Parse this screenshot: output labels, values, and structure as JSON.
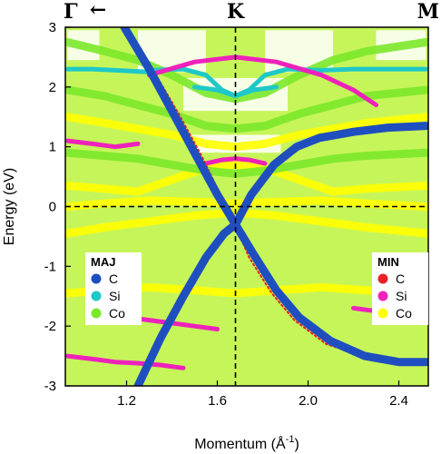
{
  "chart_data": {
    "type": "scatter",
    "title": "",
    "xlabel": "Momentum (Å",
    "xlabel_sup": "-1",
    "xlabel_close": ")",
    "ylabel": "Energy (eV)",
    "xlim": [
      0.93,
      2.53
    ],
    "ylim": [
      -3,
      3
    ],
    "xticks": [
      1.2,
      1.6,
      2.0,
      2.4
    ],
    "xtick_labels": [
      "1.2",
      "1.6",
      "2.0",
      "2.4"
    ],
    "yticks": [
      -3,
      -2,
      -1,
      0,
      1,
      2,
      3
    ],
    "ytick_labels": [
      "-3",
      "-2",
      "-1",
      "0",
      "1",
      "2",
      "3"
    ],
    "grid": false,
    "fermi_level": 0,
    "high_symmetry_points": [
      {
        "label": "Γ",
        "x": 0.93
      },
      {
        "label": "K",
        "x": 1.68
      },
      {
        "label": "M",
        "x": 2.53
      }
    ],
    "gamma_arrow": "←",
    "legends": [
      {
        "title": "MAJ",
        "position": "bottom-left",
        "entries": [
          {
            "name": "C",
            "color": "#1f4fbf"
          },
          {
            "name": "Si",
            "color": "#1fc8c8"
          },
          {
            "name": "Co",
            "color": "#7be82a"
          }
        ]
      },
      {
        "title": "MIN",
        "position": "bottom-right",
        "entries": [
          {
            "name": "C",
            "color": "#e8202a"
          },
          {
            "name": "Si",
            "color": "#ee22bb"
          },
          {
            "name": "Co",
            "color": "#ffff00"
          }
        ]
      }
    ],
    "background_fill": "#c6f55a",
    "series": [
      {
        "name": "C",
        "spin": "MAJ",
        "color": "#1f4fbf",
        "style": "thick",
        "lines": [
          {
            "x": [
              1.19,
              1.3,
              1.4,
              1.5,
              1.6,
              1.68,
              1.76,
              1.86,
              1.96,
              2.1,
              2.25,
              2.4,
              2.52
            ],
            "y": [
              3.0,
              2.3,
              1.6,
              0.9,
              0.2,
              -0.3,
              -0.8,
              -1.4,
              -1.85,
              -2.25,
              -2.5,
              -2.6,
              -2.6
            ]
          },
          {
            "x": [
              1.25,
              1.35,
              1.45,
              1.55,
              1.63,
              1.68,
              1.75,
              1.85,
              1.95,
              2.05,
              2.2,
              2.35,
              2.52
            ],
            "y": [
              -3.0,
              -2.2,
              -1.5,
              -0.85,
              -0.45,
              -0.3,
              0.2,
              0.7,
              1.0,
              1.15,
              1.25,
              1.32,
              1.35
            ]
          }
        ]
      },
      {
        "name": "C",
        "spin": "MIN",
        "color": "#e8202a",
        "style": "thin",
        "lines": [
          {
            "x": [
              1.22,
              1.33,
              1.43,
              1.53,
              1.62,
              1.68,
              1.74,
              1.84,
              1.94,
              2.08,
              2.24,
              2.4,
              2.52
            ],
            "y": [
              2.85,
              2.2,
              1.55,
              0.85,
              0.15,
              -0.32,
              -0.85,
              -1.45,
              -1.9,
              -2.3,
              -2.5,
              -2.62,
              -2.62
            ]
          }
        ]
      },
      {
        "name": "Si",
        "spin": "MAJ",
        "color": "#1fc8c8",
        "style": "medium",
        "lines": [
          {
            "x": [
              1.3,
              1.45,
              1.55,
              1.62,
              1.68,
              1.74,
              1.81,
              1.91,
              2.06
            ],
            "y": [
              2.28,
              2.3,
              2.2,
              1.95,
              1.85,
              1.95,
              2.2,
              2.3,
              2.28
            ]
          },
          {
            "x": [
              0.94,
              1.05,
              1.15,
              1.3
            ],
            "y": [
              2.3,
              2.3,
              2.28,
              2.25
            ]
          },
          {
            "x": [
              2.06,
              2.2,
              2.35,
              2.52
            ],
            "y": [
              2.28,
              2.3,
              2.3,
              2.3
            ]
          },
          {
            "x": [
              1.5,
              1.6,
              1.68,
              1.76,
              1.86
            ],
            "y": [
              2.0,
              1.95,
              1.85,
              1.95,
              2.0
            ]
          }
        ]
      },
      {
        "name": "Si",
        "spin": "MIN",
        "color": "#ee22bb",
        "style": "medium",
        "lines": [
          {
            "x": [
              1.3,
              1.5,
              1.68,
              1.86,
              2.06,
              2.2,
              2.3
            ],
            "y": [
              2.2,
              2.42,
              2.5,
              2.42,
              2.2,
              1.95,
              1.7
            ]
          },
          {
            "x": [
              0.94,
              1.05,
              1.15,
              1.25
            ],
            "y": [
              1.1,
              1.05,
              1.0,
              1.05
            ]
          },
          {
            "x": [
              1.2,
              1.3,
              1.4,
              1.5,
              1.6
            ],
            "y": [
              -1.85,
              -1.9,
              -1.95,
              -2.0,
              -2.05
            ]
          },
          {
            "x": [
              0.94,
              1.05,
              1.15,
              1.25,
              1.35,
              1.45
            ],
            "y": [
              -2.5,
              -2.55,
              -2.6,
              -2.62,
              -2.65,
              -2.7
            ]
          },
          {
            "x": [
              1.55,
              1.62,
              1.68,
              1.74,
              1.81
            ],
            "y": [
              0.72,
              0.78,
              0.8,
              0.78,
              0.72
            ]
          },
          {
            "x": [
              2.2,
              2.3,
              2.4,
              2.52
            ],
            "y": [
              -1.7,
              -1.75,
              -1.8,
              -1.85
            ]
          }
        ]
      },
      {
        "name": "Co",
        "spin": "MIN",
        "color": "#ffff00",
        "style": "band",
        "lines": [
          {
            "x": [
              0.94,
              1.1,
              1.25,
              1.4,
              1.55,
              1.68,
              1.81,
              1.96,
              2.11,
              2.26,
              2.52
            ],
            "y": [
              0.35,
              0.3,
              0.25,
              0.45,
              0.65,
              0.7,
              0.65,
              0.45,
              0.25,
              0.3,
              0.35
            ]
          },
          {
            "x": [
              0.94,
              1.1,
              1.25,
              1.4,
              1.55,
              1.68,
              1.81,
              1.96,
              2.11,
              2.26,
              2.52
            ],
            "y": [
              1.5,
              1.4,
              1.3,
              1.2,
              1.05,
              1.0,
              1.05,
              1.2,
              1.3,
              1.4,
              1.5
            ]
          },
          {
            "x": [
              0.94,
              1.1,
              1.3,
              1.5,
              1.68,
              1.86,
              2.06,
              2.26,
              2.52
            ],
            "y": [
              -0.45,
              -0.35,
              -0.25,
              -0.15,
              -0.1,
              -0.15,
              -0.25,
              -0.35,
              -0.45
            ]
          },
          {
            "x": [
              0.94,
              1.1,
              1.3,
              1.5,
              1.68,
              1.86,
              2.06,
              2.26,
              2.52
            ],
            "y": [
              -1.45,
              -1.4,
              -1.35,
              -1.4,
              -1.45,
              -1.4,
              -1.35,
              -1.4,
              -1.45
            ]
          },
          {
            "x": [
              0.94,
              1.1,
              1.3,
              1.5,
              1.68,
              1.86,
              2.06,
              2.26,
              2.52
            ],
            "y": [
              0.0,
              0.05,
              0.1,
              0.08,
              0.05,
              0.08,
              0.1,
              0.05,
              0.0
            ]
          }
        ]
      },
      {
        "name": "Co",
        "spin": "MAJ",
        "color": "#7be82a",
        "style": "band",
        "lines": [
          {
            "x": [
              0.94,
              1.1,
              1.25,
              1.4,
              1.55,
              1.68,
              1.81,
              1.96,
              2.11,
              2.26,
              2.52
            ],
            "y": [
              2.75,
              2.6,
              2.45,
              2.2,
              1.9,
              1.8,
              1.9,
              2.2,
              2.45,
              2.6,
              2.75
            ]
          },
          {
            "x": [
              0.94,
              1.1,
              1.25,
              1.4,
              1.55,
              1.68,
              1.81,
              1.96,
              2.11,
              2.26,
              2.52
            ],
            "y": [
              1.95,
              1.85,
              1.7,
              1.55,
              1.35,
              1.3,
              1.35,
              1.55,
              1.7,
              1.85,
              1.95
            ]
          },
          {
            "x": [
              0.94,
              1.1,
              1.25,
              1.4,
              1.55,
              1.68,
              1.81,
              1.96,
              2.11,
              2.26,
              2.52
            ],
            "y": [
              0.9,
              0.85,
              0.8,
              0.7,
              0.6,
              0.55,
              0.6,
              0.7,
              0.8,
              0.85,
              0.9
            ]
          }
        ]
      }
    ]
  }
}
